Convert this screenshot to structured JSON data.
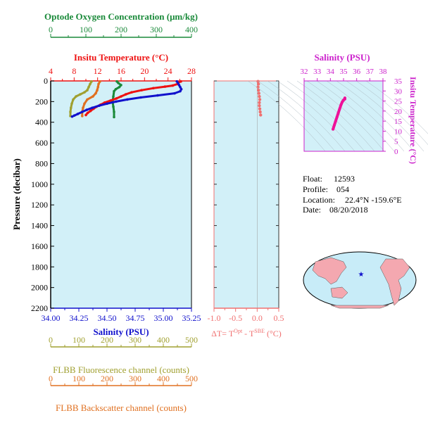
{
  "colors": {
    "background": "#d2f0f8",
    "oxygen": "#1a8a3a",
    "temperature": "#ee1111",
    "salinity": "#1111cc",
    "pressure_axis": "#000000",
    "fluorescence": "#a0a030",
    "backscatter": "#e07020",
    "delta_t": "#f07070",
    "ts_salinity": "#cc22cc",
    "ts_curve": "#ee1199",
    "land": "#f4a8b0",
    "ocean": "#c8ecf8"
  },
  "labels": {
    "oxygen_title": "Optode Oxygen Concentration (μm/kg)",
    "temperature_title": "Insitu Temperature (°C)",
    "salinity_title": "Salinity (PSU)",
    "pressure_title": "Pressure (decibar)",
    "fluorescence_title": "FLBB Fluorescence channel (counts)",
    "backscatter_title": "FLBB Backscatter channel (counts)",
    "delta_t_title": "ΔT= T",
    "delta_t_sup1": "Opt",
    "delta_t_mid": " - T",
    "delta_t_sup2": "SBE",
    "delta_t_unit": " (°C)",
    "ts_salinity_title": "Salinity (PSU)",
    "ts_temperature_title": "Insitu Temperature (°C)"
  },
  "info": {
    "float_label": "Float:",
    "float_value": "12593",
    "profile_label": "Profile:",
    "profile_value": "054",
    "location_label": "Location:",
    "location_value": "22.4°N  -159.6°E",
    "date_label": "Date:",
    "date_value": "08/20/2018"
  },
  "chart_data": [
    {
      "type": "line",
      "name": "profile",
      "pressure_axis": {
        "ticks": [
          "0",
          "200",
          "400",
          "600",
          "800",
          "1000",
          "1200",
          "1400",
          "1600",
          "1800",
          "2000",
          "2200"
        ],
        "lim": [
          0,
          2200
        ],
        "reversed": true
      },
      "oxygen_axis": {
        "ticks": [
          "0",
          "100",
          "200",
          "300",
          "400"
        ],
        "lim": [
          0,
          400
        ]
      },
      "temperature_axis": {
        "ticks": [
          "4",
          "8",
          "12",
          "16",
          "20",
          "24",
          "28"
        ],
        "lim": [
          4,
          28
        ]
      },
      "salinity_axis": {
        "ticks": [
          "34.00",
          "34.25",
          "34.50",
          "34.75",
          "35.00",
          "35.25"
        ],
        "lim": [
          34.0,
          35.25
        ]
      },
      "fluorescence_axis": {
        "ticks": [
          "0",
          "100",
          "200",
          "300",
          "400",
          "500"
        ],
        "lim": [
          0,
          500
        ]
      },
      "backscatter_axis": {
        "ticks": [
          "0",
          "100",
          "200",
          "300",
          "400",
          "500"
        ],
        "lim": [
          0,
          500
        ]
      },
      "temperature": [
        [
          26.2,
          5
        ],
        [
          25.8,
          15
        ],
        [
          25.6,
          30
        ],
        [
          24.8,
          45
        ],
        [
          23.5,
          55
        ],
        [
          21.5,
          70
        ],
        [
          19.5,
          90
        ],
        [
          17.8,
          110
        ],
        [
          16.8,
          130
        ],
        [
          16.0,
          150
        ],
        [
          15.2,
          170
        ],
        [
          14.2,
          190
        ],
        [
          13.2,
          210
        ],
        [
          12.5,
          230
        ],
        [
          11.8,
          250
        ],
        [
          11.3,
          270
        ],
        [
          10.8,
          290
        ],
        [
          10.3,
          310
        ],
        [
          10.0,
          330
        ]
      ],
      "salinity": [
        [
          35.12,
          5
        ],
        [
          35.13,
          20
        ],
        [
          35.14,
          40
        ],
        [
          35.15,
          60
        ],
        [
          35.16,
          80
        ],
        [
          35.15,
          100
        ],
        [
          35.1,
          120
        ],
        [
          34.95,
          140
        ],
        [
          34.8,
          160
        ],
        [
          34.68,
          180
        ],
        [
          34.58,
          200
        ],
        [
          34.5,
          220
        ],
        [
          34.43,
          240
        ],
        [
          34.37,
          260
        ],
        [
          34.32,
          280
        ],
        [
          34.28,
          300
        ],
        [
          34.24,
          320
        ],
        [
          34.21,
          335
        ],
        [
          34.19,
          345
        ]
      ],
      "oxygen": [
        [
          188,
          5
        ],
        [
          192,
          20
        ],
        [
          200,
          40
        ],
        [
          195,
          60
        ],
        [
          185,
          80
        ],
        [
          180,
          100
        ],
        [
          178,
          150
        ],
        [
          176,
          200
        ],
        [
          178,
          250
        ],
        [
          180,
          300
        ],
        [
          180,
          350
        ]
      ],
      "fluorescence": [
        [
          145,
          5
        ],
        [
          140,
          30
        ],
        [
          135,
          60
        ],
        [
          130,
          90
        ],
        [
          120,
          110
        ],
        [
          105,
          130
        ],
        [
          90,
          150
        ],
        [
          80,
          180
        ],
        [
          75,
          220
        ],
        [
          72,
          260
        ],
        [
          70,
          300
        ],
        [
          70,
          340
        ]
      ],
      "backscatter": [
        [
          175,
          5
        ],
        [
          170,
          30
        ],
        [
          168,
          60
        ],
        [
          165,
          90
        ],
        [
          160,
          120
        ],
        [
          150,
          150
        ],
        [
          130,
          180
        ],
        [
          120,
          220
        ],
        [
          115,
          260
        ],
        [
          112,
          300
        ],
        [
          112,
          340
        ]
      ]
    },
    {
      "type": "scatter",
      "name": "delta_t",
      "x_axis": {
        "ticks": [
          "-1.0",
          "-0.5",
          "0.0",
          "0.5"
        ],
        "lim": [
          -1.0,
          0.5
        ]
      },
      "points": [
        [
          0.02,
          5
        ],
        [
          0.03,
          30
        ],
        [
          0.02,
          60
        ],
        [
          0.03,
          90
        ],
        [
          0.04,
          120
        ],
        [
          0.05,
          150
        ],
        [
          0.06,
          180
        ],
        [
          0.05,
          210
        ],
        [
          0.05,
          240
        ],
        [
          0.06,
          270
        ],
        [
          0.07,
          300
        ],
        [
          0.08,
          330
        ]
      ]
    },
    {
      "type": "line",
      "name": "ts_diagram",
      "x_axis": {
        "ticks": [
          "32",
          "33",
          "34",
          "35",
          "36",
          "37",
          "38"
        ],
        "lim": [
          32,
          38
        ]
      },
      "y_axis": {
        "ticks": [
          "0",
          "5",
          "10",
          "15",
          "20",
          "25",
          "30",
          "35"
        ],
        "lim": [
          0,
          35
        ]
      },
      "points": [
        [
          34.2,
          11
        ],
        [
          34.3,
          13
        ],
        [
          34.4,
          15
        ],
        [
          34.5,
          17
        ],
        [
          34.6,
          19
        ],
        [
          34.7,
          21
        ],
        [
          34.8,
          23
        ],
        [
          34.9,
          24.5
        ],
        [
          35.0,
          25.5
        ],
        [
          35.1,
          26.0
        ],
        [
          35.1,
          26.5
        ]
      ]
    }
  ]
}
